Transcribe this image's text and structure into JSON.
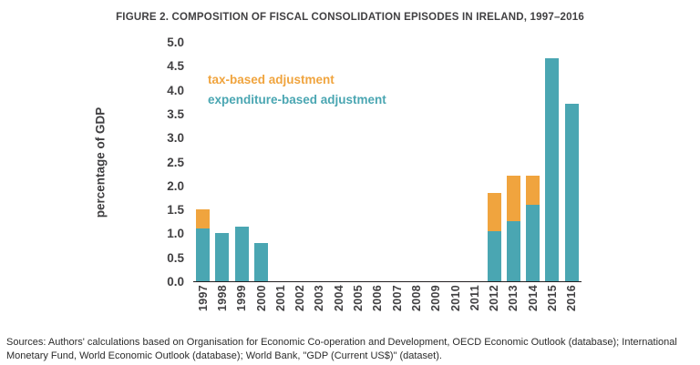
{
  "figure": {
    "title": "FIGURE 2. COMPOSITION OF FISCAL CONSOLIDATION EPISODES IN IRELAND, 1997–2016",
    "sources": "Sources: Authors' calculations based on Organisation for Economic Co-operation and Development, OECD Economic Outlook (database); International Monetary Fund, World Economic Outlook (database); World Bank, \"GDP (Current US$)\" (dataset)."
  },
  "legend": {
    "items": [
      {
        "label": "tax-based adjustment",
        "color": "#f0a43e"
      },
      {
        "label": "expenditure-based adjustment",
        "color": "#4aa6b2"
      }
    ]
  },
  "chart_data": {
    "type": "bar",
    "stacked": true,
    "title": "FIGURE 2. COMPOSITION OF FISCAL CONSOLIDATION EPISODES IN IRELAND, 1997–2016",
    "xlabel": "",
    "ylabel": "percentage of GDP",
    "ylim": [
      0,
      5.0
    ],
    "ytick_step": 0.5,
    "grid": false,
    "legend_position": "top-left-inside",
    "categories": [
      "1997",
      "1998",
      "1999",
      "2000",
      "2001",
      "2002",
      "2003",
      "2004",
      "2005",
      "2006",
      "2007",
      "2008",
      "2009",
      "2010",
      "2011",
      "2012",
      "2013",
      "2014",
      "2015",
      "2016"
    ],
    "series": [
      {
        "name": "expenditure-based adjustment",
        "color": "#4aa6b2",
        "values": [
          1.1,
          1.0,
          1.15,
          0.8,
          0,
          0,
          0,
          0,
          0,
          0,
          0,
          0,
          0,
          0,
          0,
          1.05,
          1.25,
          1.6,
          4.65,
          3.7
        ]
      },
      {
        "name": "tax-based adjustment",
        "color": "#f0a43e",
        "values": [
          0.4,
          0,
          0,
          0,
          0,
          0,
          0,
          0,
          0,
          0,
          0,
          0,
          0,
          0,
          0,
          0.8,
          0.95,
          0.6,
          0,
          0
        ]
      }
    ]
  }
}
